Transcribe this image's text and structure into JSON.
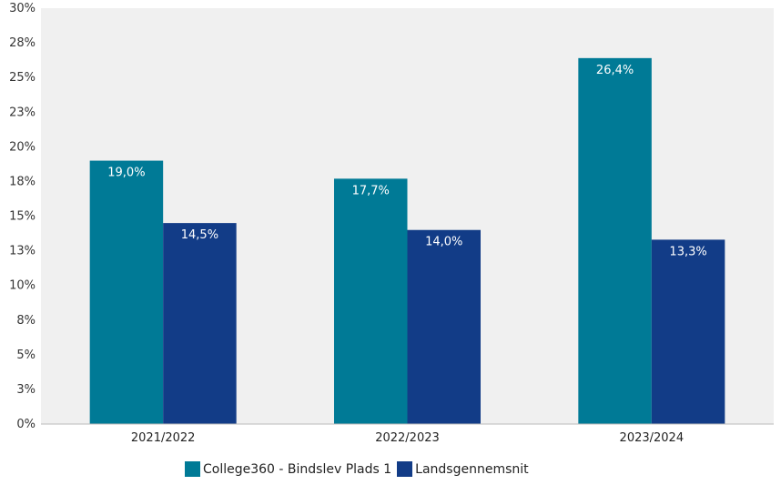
{
  "chart_data": {
    "type": "bar",
    "categories": [
      "2021/2022",
      "2022/2023",
      "2023/2024"
    ],
    "series": [
      {
        "name": "College360 - Bindslev Plads 1",
        "values": [
          19.0,
          17.7,
          26.4
        ],
        "labels": [
          "19,0%",
          "17,7%",
          "26,4%"
        ],
        "color": "#007a96"
      },
      {
        "name": "Landsgennemsnit",
        "values": [
          14.5,
          14.0,
          13.3
        ],
        "labels": [
          "14,5%",
          "14,0%",
          "13,3%"
        ],
        "color": "#123c87"
      }
    ],
    "ylim": [
      0,
      30
    ],
    "yticks": [
      {
        "v": 0,
        "label": "0%"
      },
      {
        "v": 2.5,
        "label": "3%"
      },
      {
        "v": 5,
        "label": "5%"
      },
      {
        "v": 7.5,
        "label": "8%"
      },
      {
        "v": 10,
        "label": "10%"
      },
      {
        "v": 12.5,
        "label": "13%"
      },
      {
        "v": 15,
        "label": "15%"
      },
      {
        "v": 17.5,
        "label": "18%"
      },
      {
        "v": 20,
        "label": "20%"
      },
      {
        "v": 22.5,
        "label": "23%"
      },
      {
        "v": 25,
        "label": "25%"
      },
      {
        "v": 27.5,
        "label": "28%"
      },
      {
        "v": 30,
        "label": "30%"
      }
    ],
    "plot_background": "#f0f0f0",
    "axis_color": "#bbbbbb",
    "grid": false,
    "legend_position": "bottom"
  }
}
